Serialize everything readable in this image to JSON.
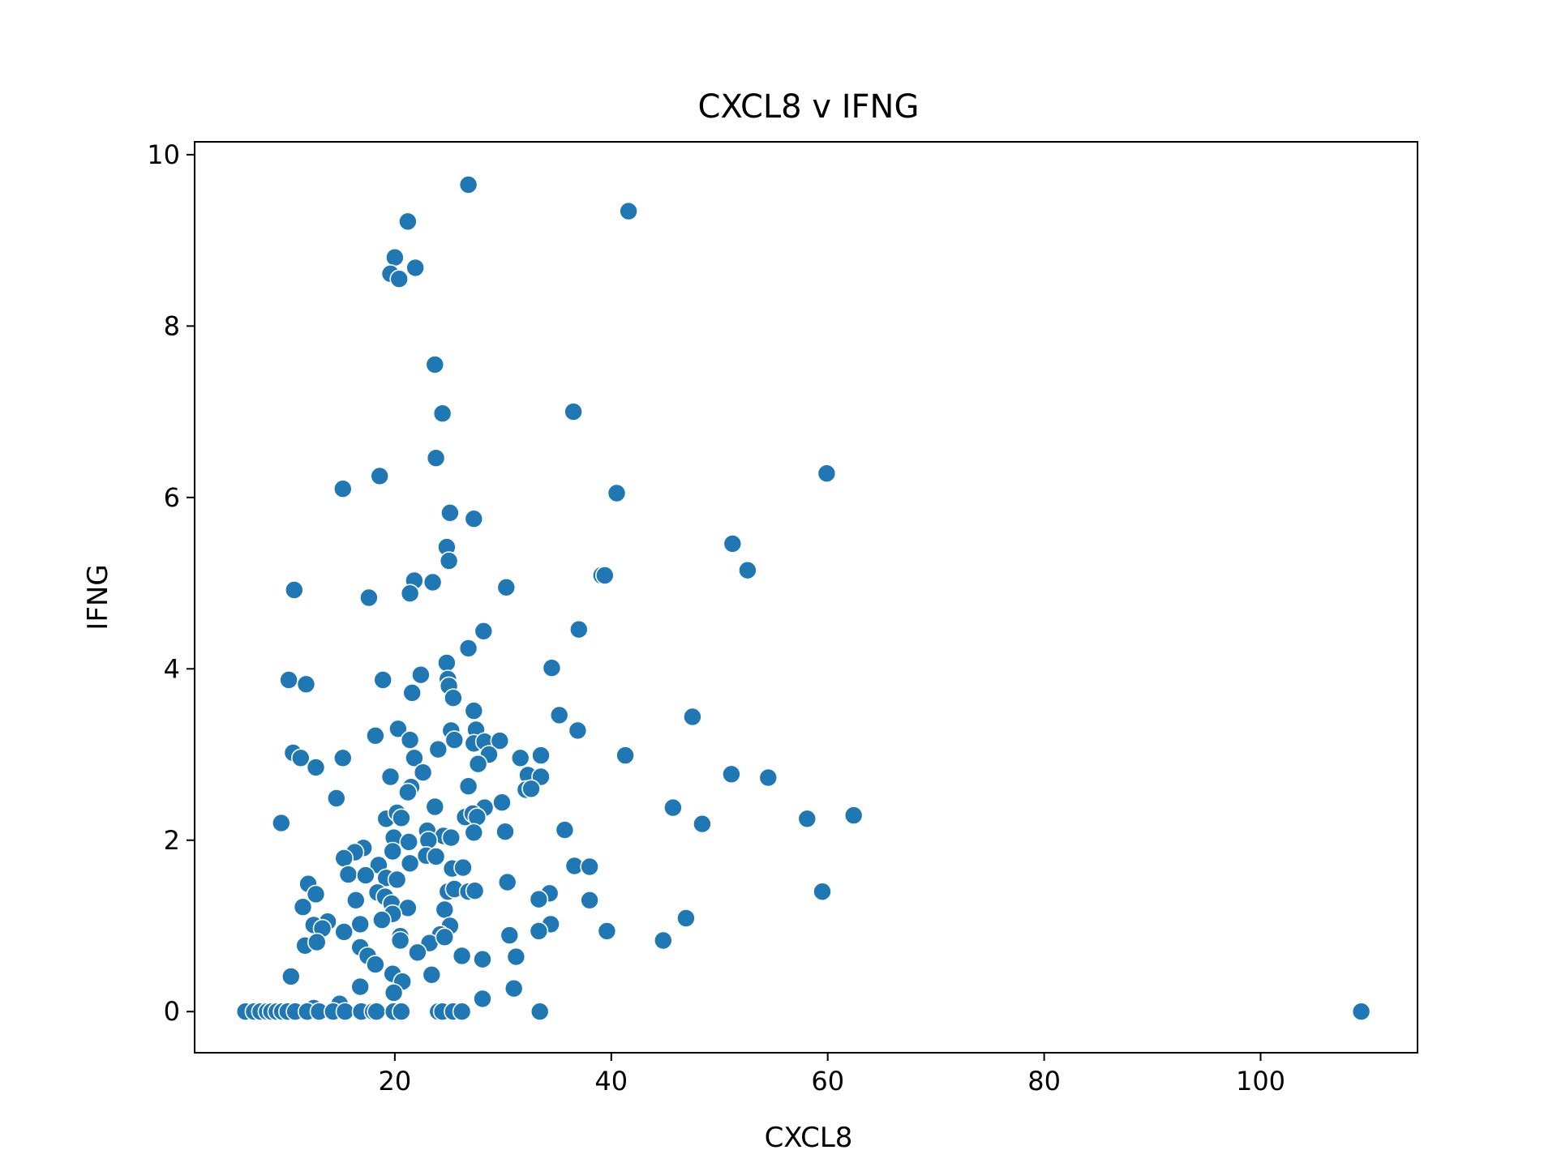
{
  "chart_data": {
    "type": "scatter",
    "title": "CXCL8 v IFNG",
    "xlabel": "CXCL8",
    "ylabel": "IFNG",
    "xlim": [
      1.5,
      114.5
    ],
    "ylim": [
      -0.48,
      10.15
    ],
    "xticks": [
      20,
      40,
      60,
      80,
      100
    ],
    "yticks": [
      0,
      2,
      4,
      6,
      8,
      10
    ],
    "grid": false,
    "marker_color": "#1f77b4",
    "points": [
      [
        26.8,
        9.65
      ],
      [
        41.6,
        9.34
      ],
      [
        21.2,
        9.22
      ],
      [
        20.0,
        8.8
      ],
      [
        19.6,
        8.61
      ],
      [
        20.4,
        8.55
      ],
      [
        21.9,
        8.68
      ],
      [
        23.7,
        7.55
      ],
      [
        24.4,
        6.98
      ],
      [
        36.5,
        7.0
      ],
      [
        23.8,
        6.46
      ],
      [
        15.2,
        6.1
      ],
      [
        18.6,
        6.25
      ],
      [
        40.5,
        6.05
      ],
      [
        59.9,
        6.28
      ],
      [
        25.1,
        5.82
      ],
      [
        27.3,
        5.75
      ],
      [
        24.8,
        5.42
      ],
      [
        25.0,
        5.26
      ],
      [
        51.2,
        5.46
      ],
      [
        52.6,
        5.15
      ],
      [
        21.8,
        5.03
      ],
      [
        23.5,
        5.01
      ],
      [
        21.4,
        4.88
      ],
      [
        10.7,
        4.92
      ],
      [
        17.6,
        4.83
      ],
      [
        30.3,
        4.95
      ],
      [
        39.1,
        5.09
      ],
      [
        39.4,
        5.09
      ],
      [
        28.2,
        4.44
      ],
      [
        37.0,
        4.46
      ],
      [
        26.8,
        4.24
      ],
      [
        24.8,
        4.07
      ],
      [
        34.5,
        4.01
      ],
      [
        10.2,
        3.87
      ],
      [
        11.8,
        3.82
      ],
      [
        18.9,
        3.87
      ],
      [
        22.4,
        3.93
      ],
      [
        24.9,
        3.88
      ],
      [
        25.0,
        3.8
      ],
      [
        21.6,
        3.72
      ],
      [
        25.4,
        3.66
      ],
      [
        27.3,
        3.51
      ],
      [
        35.2,
        3.46
      ],
      [
        47.5,
        3.44
      ],
      [
        20.3,
        3.3
      ],
      [
        25.2,
        3.28
      ],
      [
        27.5,
        3.29
      ],
      [
        36.9,
        3.28
      ],
      [
        18.2,
        3.22
      ],
      [
        21.4,
        3.17
      ],
      [
        25.5,
        3.17
      ],
      [
        27.3,
        3.13
      ],
      [
        28.3,
        3.15
      ],
      [
        29.7,
        3.16
      ],
      [
        10.6,
        3.02
      ],
      [
        11.3,
        2.96
      ],
      [
        15.2,
        2.96
      ],
      [
        21.8,
        2.96
      ],
      [
        24.0,
        3.06
      ],
      [
        28.7,
        3.0
      ],
      [
        31.6,
        2.96
      ],
      [
        33.5,
        2.99
      ],
      [
        41.3,
        2.99
      ],
      [
        12.7,
        2.85
      ],
      [
        22.6,
        2.79
      ],
      [
        19.6,
        2.74
      ],
      [
        27.7,
        2.89
      ],
      [
        32.3,
        2.76
      ],
      [
        33.5,
        2.74
      ],
      [
        51.1,
        2.77
      ],
      [
        54.5,
        2.73
      ],
      [
        14.6,
        2.49
      ],
      [
        21.5,
        2.62
      ],
      [
        21.2,
        2.56
      ],
      [
        26.8,
        2.63
      ],
      [
        32.1,
        2.59
      ],
      [
        32.6,
        2.6
      ],
      [
        23.7,
        2.39
      ],
      [
        28.3,
        2.38
      ],
      [
        29.9,
        2.44
      ],
      [
        45.7,
        2.38
      ],
      [
        19.2,
        2.25
      ],
      [
        20.2,
        2.32
      ],
      [
        20.6,
        2.26
      ],
      [
        26.5,
        2.27
      ],
      [
        27.2,
        2.31
      ],
      [
        27.6,
        2.27
      ],
      [
        58.1,
        2.25
      ],
      [
        62.4,
        2.29
      ],
      [
        9.5,
        2.2
      ],
      [
        48.4,
        2.19
      ],
      [
        23.0,
        2.11
      ],
      [
        24.5,
        2.05
      ],
      [
        27.3,
        2.09
      ],
      [
        30.2,
        2.1
      ],
      [
        35.7,
        2.12
      ],
      [
        19.9,
        2.03
      ],
      [
        21.3,
        1.98
      ],
      [
        23.1,
        2.0
      ],
      [
        25.2,
        2.03
      ],
      [
        17.1,
        1.91
      ],
      [
        16.3,
        1.86
      ],
      [
        19.8,
        1.87
      ],
      [
        22.9,
        1.82
      ],
      [
        23.8,
        1.81
      ],
      [
        15.3,
        1.79
      ],
      [
        18.5,
        1.71
      ],
      [
        21.4,
        1.73
      ],
      [
        25.3,
        1.67
      ],
      [
        26.3,
        1.68
      ],
      [
        36.6,
        1.7
      ],
      [
        38.0,
        1.69
      ],
      [
        15.7,
        1.6
      ],
      [
        17.3,
        1.59
      ],
      [
        19.2,
        1.56
      ],
      [
        20.2,
        1.54
      ],
      [
        12.0,
        1.49
      ],
      [
        30.4,
        1.51
      ],
      [
        12.7,
        1.37
      ],
      [
        18.4,
        1.39
      ],
      [
        19.1,
        1.34
      ],
      [
        24.9,
        1.4
      ],
      [
        25.5,
        1.43
      ],
      [
        26.8,
        1.4
      ],
      [
        27.4,
        1.41
      ],
      [
        34.3,
        1.38
      ],
      [
        16.4,
        1.3
      ],
      [
        19.7,
        1.26
      ],
      [
        33.3,
        1.31
      ],
      [
        38.0,
        1.3
      ],
      [
        59.5,
        1.4
      ],
      [
        11.5,
        1.22
      ],
      [
        21.2,
        1.21
      ],
      [
        24.6,
        1.19
      ],
      [
        19.8,
        1.14
      ],
      [
        18.8,
        1.07
      ],
      [
        13.8,
        1.05
      ],
      [
        12.5,
        1.01
      ],
      [
        16.8,
        1.02
      ],
      [
        25.1,
        1.0
      ],
      [
        34.4,
        1.02
      ],
      [
        46.9,
        1.09
      ],
      [
        13.3,
        0.97
      ],
      [
        15.3,
        0.93
      ],
      [
        24.2,
        0.9
      ],
      [
        33.3,
        0.94
      ],
      [
        39.6,
        0.94
      ],
      [
        20.5,
        0.88
      ],
      [
        30.6,
        0.89
      ],
      [
        44.8,
        0.83
      ],
      [
        11.7,
        0.77
      ],
      [
        12.8,
        0.81
      ],
      [
        20.5,
        0.83
      ],
      [
        23.2,
        0.8
      ],
      [
        24.6,
        0.87
      ],
      [
        16.8,
        0.75
      ],
      [
        22.1,
        0.69
      ],
      [
        17.5,
        0.65
      ],
      [
        26.2,
        0.65
      ],
      [
        28.1,
        0.61
      ],
      [
        31.2,
        0.64
      ],
      [
        18.2,
        0.55
      ],
      [
        19.8,
        0.44
      ],
      [
        23.4,
        0.43
      ],
      [
        10.4,
        0.41
      ],
      [
        20.7,
        0.35
      ],
      [
        16.8,
        0.29
      ],
      [
        31.0,
        0.27
      ],
      [
        19.9,
        0.22
      ],
      [
        28.1,
        0.15
      ],
      [
        14.9,
        0.09
      ],
      [
        12.5,
        0.04
      ],
      [
        6.2,
        0.0
      ],
      [
        7.0,
        0.0
      ],
      [
        7.6,
        0.0
      ],
      [
        8.2,
        0.0
      ],
      [
        8.6,
        0.0
      ],
      [
        9.1,
        0.0
      ],
      [
        9.6,
        0.0
      ],
      [
        10.1,
        0.0
      ],
      [
        10.8,
        0.0
      ],
      [
        11.9,
        0.0
      ],
      [
        13.0,
        0.0
      ],
      [
        14.3,
        0.0
      ],
      [
        15.4,
        0.0
      ],
      [
        16.9,
        0.0
      ],
      [
        18.0,
        0.0
      ],
      [
        18.3,
        0.0
      ],
      [
        19.9,
        0.0
      ],
      [
        20.6,
        0.0
      ],
      [
        24.0,
        0.0
      ],
      [
        24.4,
        0.0
      ],
      [
        25.4,
        0.0
      ],
      [
        26.2,
        0.0
      ],
      [
        33.4,
        0.0
      ],
      [
        109.3,
        0.0
      ]
    ]
  }
}
